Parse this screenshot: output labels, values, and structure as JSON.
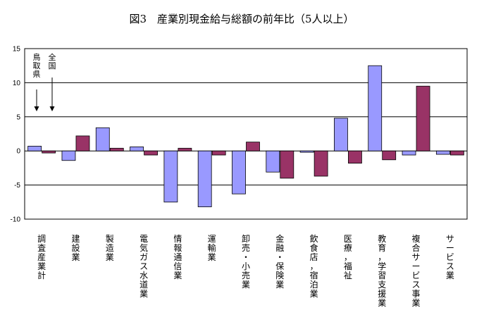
{
  "chart_data": {
    "type": "bar",
    "title": "図3　産業別現金給与総額の前年比（5人以上）",
    "categories": [
      "調査産業計",
      "建設業",
      "製造業",
      "電気ガス水道業",
      "情報通信業",
      "運輸業",
      "卸売・小売業",
      "金融・保険業",
      "飲食店，宿泊業",
      "医療，福祉",
      "教育，学習支援業",
      "複合サービス事業",
      "サービス業"
    ],
    "series": [
      {
        "name": "鳥取県",
        "color": "#9999ff",
        "values": [
          0.7,
          -1.4,
          3.4,
          0.6,
          -7.5,
          -8.2,
          -6.3,
          -3.1,
          -0.2,
          4.8,
          12.5,
          -0.6,
          -0.5
        ]
      },
      {
        "name": "全国",
        "color": "#993366",
        "values": [
          -0.3,
          2.2,
          0.4,
          -0.6,
          0.4,
          -0.6,
          1.3,
          -4.0,
          -3.7,
          -1.8,
          -1.3,
          9.5,
          -0.6
        ]
      }
    ],
    "ylim": [
      -10,
      15
    ],
    "yticks": [
      -10,
      -5,
      0,
      5,
      10,
      15
    ],
    "grid": true,
    "legend": "annotation-top-left"
  }
}
